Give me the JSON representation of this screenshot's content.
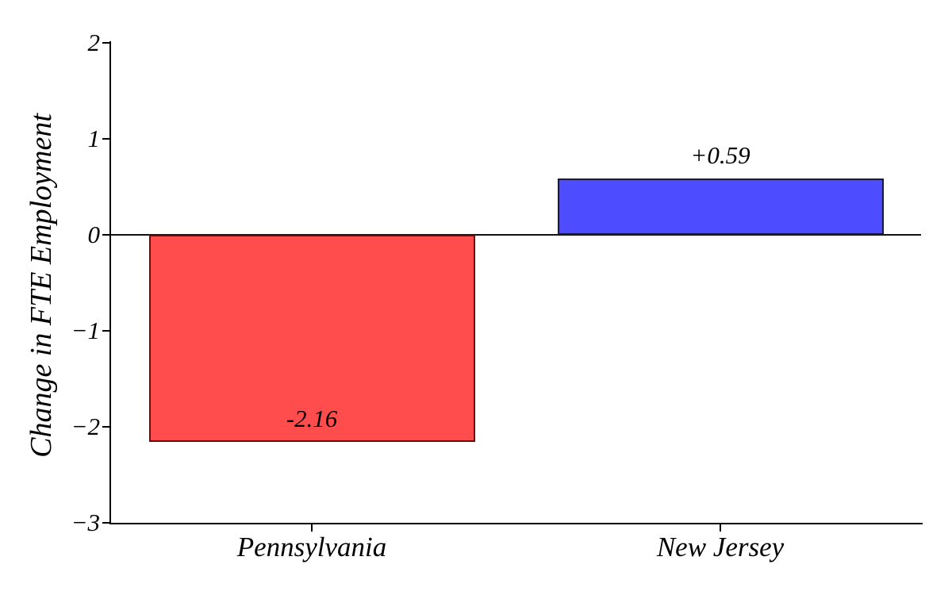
{
  "chart_data": {
    "type": "bar",
    "title": "",
    "xlabel": "",
    "ylabel": "Change in FTE Employment",
    "categories": [
      "Pennsylvania",
      "New Jersey"
    ],
    "values": [
      -2.16,
      0.59
    ],
    "bar_labels": [
      "-2.16",
      "+0.59"
    ],
    "bar_fill_colors": [
      "#ff4d4d",
      "#4d4dff"
    ],
    "bar_edge_colors": [
      "#4d1717",
      "#17174d"
    ],
    "ylim": [
      -3,
      2
    ],
    "yticks": [
      2,
      1,
      0,
      -1,
      -2,
      -3
    ],
    "ytick_labels": [
      "2",
      "1",
      "0",
      "−1",
      "−2",
      "−3"
    ],
    "zero_line": true,
    "grid": false,
    "legend": false,
    "axis_color": "#000000",
    "text_color": "#000000",
    "background_color": "#ffffff"
  }
}
